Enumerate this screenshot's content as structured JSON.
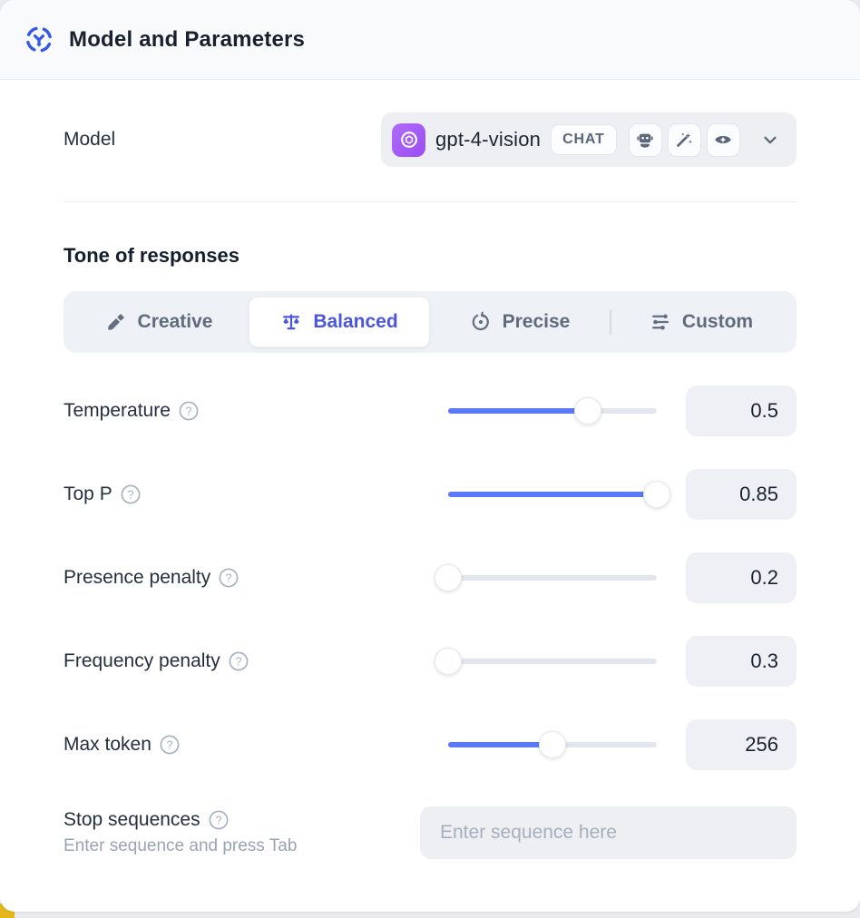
{
  "header": {
    "title": "Model and Parameters"
  },
  "model": {
    "label": "Model",
    "name": "gpt-4-vision",
    "badge": "CHAT",
    "provider": "openai",
    "capabilities": [
      "assistant-robot",
      "magic-wand",
      "vision-eye"
    ]
  },
  "tone": {
    "heading": "Tone of responses",
    "tabs": [
      {
        "label": "Creative",
        "icon": "paintbrush-icon",
        "selected": false
      },
      {
        "label": "Balanced",
        "icon": "balance-scale-icon",
        "selected": true
      },
      {
        "label": "Precise",
        "icon": "target-icon",
        "selected": false
      },
      {
        "label": "Custom",
        "icon": "sliders-icon",
        "selected": false
      }
    ]
  },
  "params": [
    {
      "label": "Temperature",
      "value": "0.5",
      "fill_pct": 67
    },
    {
      "label": "Top P",
      "value": "0.85",
      "fill_pct": 100
    },
    {
      "label": "Presence penalty",
      "value": "0.2",
      "fill_pct": 0
    },
    {
      "label": "Frequency penalty",
      "value": "0.3",
      "fill_pct": 0
    },
    {
      "label": "Max token",
      "value": "256",
      "fill_pct": 50
    }
  ],
  "stop": {
    "label": "Stop sequences",
    "hint": "Enter sequence and press Tab",
    "placeholder": "Enter sequence here"
  },
  "colors": {
    "accent_indigo": "#4b55e0",
    "slider_blue": "#5b79f7",
    "header_icon_blue": "#3558e8",
    "provider_purple": "#9a4cf3",
    "corner_yellow": "#e4b61a"
  }
}
